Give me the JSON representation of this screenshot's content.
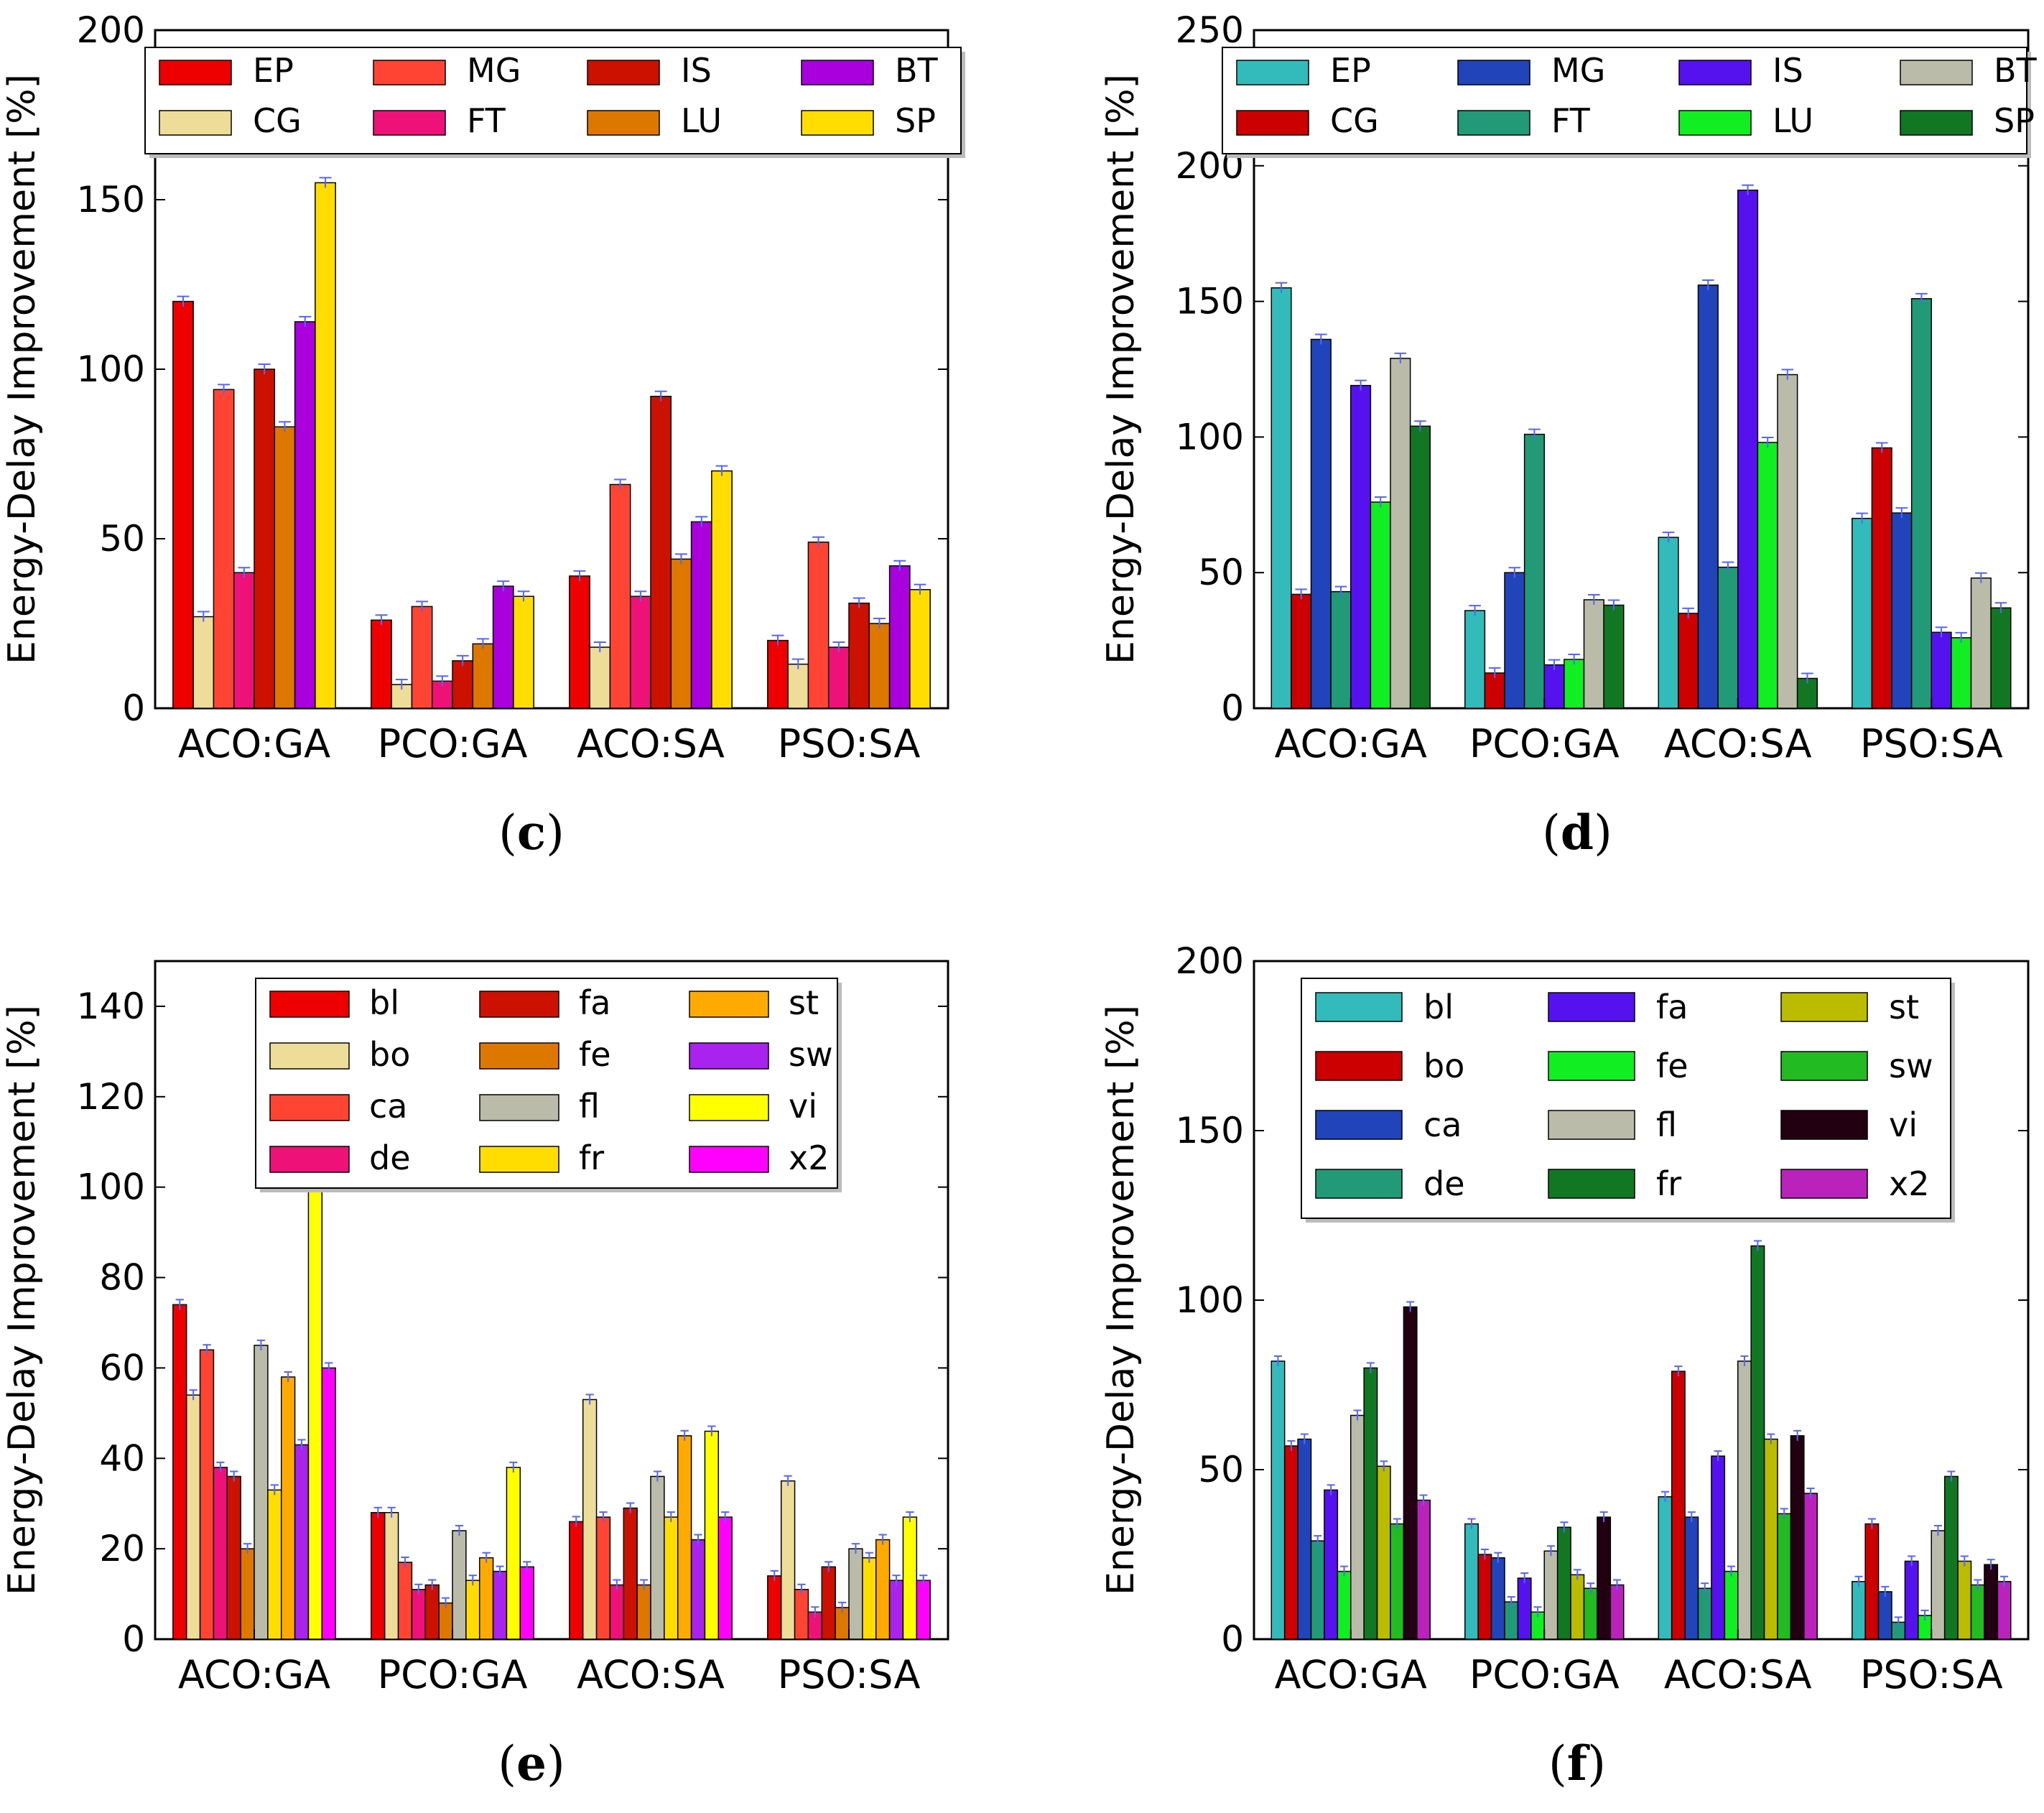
{
  "chart_data": [
    {
      "panel": "c",
      "type": "bar",
      "ylabel": "Energy-Delay Improvement [%]",
      "ylim": [
        0,
        200
      ],
      "yticks": [
        0,
        50,
        100,
        150,
        200
      ],
      "categories": [
        "ACO:GA",
        "PCO:GA",
        "ACO:SA",
        "PSO:SA"
      ],
      "legend_placement": "top",
      "legend_columns": 4,
      "series": [
        {
          "name": "EP",
          "color": "#ee0000",
          "values": [
            120,
            26,
            39,
            20
          ]
        },
        {
          "name": "CG",
          "color": "#eedd99",
          "values": [
            27,
            7,
            18,
            13
          ]
        },
        {
          "name": "MG",
          "color": "#ff4433",
          "values": [
            94,
            30,
            66,
            49
          ]
        },
        {
          "name": "FT",
          "color": "#ee1177",
          "values": [
            40,
            8,
            33,
            18
          ]
        },
        {
          "name": "IS",
          "color": "#cc1100",
          "values": [
            100,
            14,
            92,
            31
          ]
        },
        {
          "name": "LU",
          "color": "#dd7700",
          "values": [
            83,
            19,
            44,
            25
          ]
        },
        {
          "name": "BT",
          "color": "#aa00dd",
          "values": [
            114,
            36,
            55,
            42
          ]
        },
        {
          "name": "SP",
          "color": "#ffdd00",
          "values": [
            155,
            33,
            70,
            35
          ]
        }
      ]
    },
    {
      "panel": "d",
      "type": "bar",
      "ylabel": "Energy-Delay Improvement [%]",
      "ylim": [
        0,
        250
      ],
      "yticks": [
        0,
        50,
        100,
        150,
        200,
        250
      ],
      "categories": [
        "ACO:GA",
        "PCO:GA",
        "ACO:SA",
        "PSO:SA"
      ],
      "legend_placement": "top",
      "legend_columns": 4,
      "series": [
        {
          "name": "EP",
          "color": "#33bbbb",
          "values": [
            155,
            36,
            63,
            70
          ]
        },
        {
          "name": "CG",
          "color": "#cc0000",
          "values": [
            42,
            13,
            35,
            96
          ]
        },
        {
          "name": "MG",
          "color": "#2244bb",
          "values": [
            136,
            50,
            156,
            72
          ]
        },
        {
          "name": "FT",
          "color": "#229977",
          "values": [
            43,
            101,
            52,
            151
          ]
        },
        {
          "name": "IS",
          "color": "#5511ee",
          "values": [
            119,
            16,
            191,
            28
          ]
        },
        {
          "name": "LU",
          "color": "#11ee22",
          "values": [
            76,
            18,
            98,
            26
          ]
        },
        {
          "name": "BT",
          "color": "#bbbbaa",
          "values": [
            129,
            40,
            123,
            48
          ]
        },
        {
          "name": "SP",
          "color": "#117722",
          "values": [
            104,
            38,
            11,
            37
          ]
        }
      ]
    },
    {
      "panel": "e",
      "type": "bar",
      "ylabel": "Energy-Delay Improvement [%]",
      "ylim": [
        0,
        150
      ],
      "yticks": [
        0,
        20,
        40,
        60,
        80,
        100,
        120,
        140
      ],
      "categories": [
        "ACO:GA",
        "PCO:GA",
        "ACO:SA",
        "PSO:SA"
      ],
      "legend_placement": "top-right",
      "legend_columns": 3,
      "series": [
        {
          "name": "bl",
          "color": "#ee0000",
          "values": [
            74,
            28,
            26,
            14
          ]
        },
        {
          "name": "bo",
          "color": "#eedd99",
          "values": [
            54,
            28,
            53,
            35
          ]
        },
        {
          "name": "ca",
          "color": "#ff4433",
          "values": [
            64,
            17,
            27,
            11
          ]
        },
        {
          "name": "de",
          "color": "#ee1177",
          "values": [
            38,
            11,
            12,
            6
          ]
        },
        {
          "name": "fa",
          "color": "#cc1100",
          "values": [
            36,
            12,
            29,
            16
          ]
        },
        {
          "name": "fe",
          "color": "#dd7700",
          "values": [
            20,
            8,
            12,
            7
          ]
        },
        {
          "name": "fl",
          "color": "#bbbbaa",
          "values": [
            65,
            24,
            36,
            20
          ]
        },
        {
          "name": "fr",
          "color": "#ffdd00",
          "values": [
            33,
            13,
            27,
            18
          ]
        },
        {
          "name": "st",
          "color": "#ffaa00",
          "values": [
            58,
            18,
            45,
            22
          ]
        },
        {
          "name": "sw",
          "color": "#aa22ee",
          "values": [
            43,
            15,
            22,
            13
          ]
        },
        {
          "name": "vi",
          "color": "#ffff00",
          "values": [
            100,
            38,
            46,
            27
          ]
        },
        {
          "name": "x2",
          "color": "#ff00ff",
          "values": [
            60,
            16,
            27,
            13
          ]
        }
      ]
    },
    {
      "panel": "f",
      "type": "bar",
      "ylabel": "Energy-Delay Improvement [%]",
      "ylim": [
        0,
        200
      ],
      "yticks": [
        0,
        50,
        100,
        150,
        200
      ],
      "categories": [
        "ACO:GA",
        "PCO:GA",
        "ACO:SA",
        "PSO:SA"
      ],
      "legend_placement": "top-right",
      "legend_columns": 3,
      "series": [
        {
          "name": "bl",
          "color": "#33bbbb",
          "values": [
            82,
            34,
            42,
            17
          ]
        },
        {
          "name": "bo",
          "color": "#cc0000",
          "values": [
            57,
            25,
            79,
            34
          ]
        },
        {
          "name": "ca",
          "color": "#2244bb",
          "values": [
            59,
            24,
            36,
            14
          ]
        },
        {
          "name": "de",
          "color": "#229977",
          "values": [
            29,
            11,
            15,
            5
          ]
        },
        {
          "name": "fa",
          "color": "#5511ee",
          "values": [
            44,
            18,
            54,
            23
          ]
        },
        {
          "name": "fe",
          "color": "#11ee22",
          "values": [
            20,
            8,
            20,
            7
          ]
        },
        {
          "name": "fl",
          "color": "#bbbbaa",
          "values": [
            66,
            26,
            82,
            32
          ]
        },
        {
          "name": "fr",
          "color": "#117722",
          "values": [
            80,
            33,
            116,
            48
          ]
        },
        {
          "name": "st",
          "color": "#bbbb00",
          "values": [
            51,
            19,
            59,
            23
          ]
        },
        {
          "name": "sw",
          "color": "#22bb22",
          "values": [
            34,
            15,
            37,
            16
          ]
        },
        {
          "name": "vi",
          "color": "#220011",
          "values": [
            98,
            36,
            60,
            22
          ]
        },
        {
          "name": "x2",
          "color": "#bb22bb",
          "values": [
            41,
            16,
            43,
            17
          ]
        }
      ]
    }
  ]
}
